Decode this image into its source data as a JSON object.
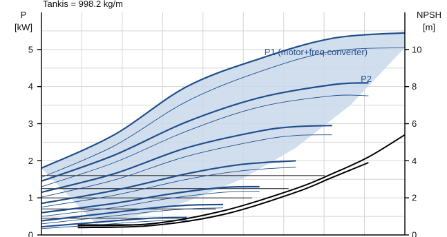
{
  "chart_data": {
    "type": "line",
    "density_label": "Tankis = 998.2 kg/m",
    "left_axis": {
      "label_line1": "P",
      "label_line2": "[kW]",
      "ylim": [
        0,
        6
      ],
      "ticks": [
        "0",
        "1",
        "2",
        "3",
        "4",
        "5"
      ]
    },
    "right_axis": {
      "label_line1": "NPSH",
      "label_line2": "[m]",
      "ylim": [
        0,
        12
      ],
      "ticks": [
        "0",
        "2",
        "4",
        "6",
        "8",
        "10"
      ]
    },
    "xlim": [
      0,
      100
    ],
    "grid": true,
    "colors": {
      "p1": "#1f4e8c",
      "p2": "#1f4e8c",
      "band": "#c9d8ea",
      "thin": "#1f4e8c",
      "npsh": "#000000"
    },
    "series": [
      {
        "name": "P1 (motor+freq.converter)",
        "role": "p1",
        "x": [
          0,
          20,
          40,
          60,
          80,
          100
        ],
        "y": [
          1.8,
          2.7,
          4.0,
          4.75,
          5.3,
          5.45
        ]
      },
      {
        "name": "P2",
        "role": "p2",
        "x": [
          0,
          20,
          40,
          60,
          80,
          100
        ],
        "y": [
          1.55,
          2.4,
          3.6,
          4.4,
          4.95,
          5.05
        ]
      },
      {
        "role": "p1",
        "x": [
          0,
          20,
          40,
          60,
          80,
          90
        ],
        "y": [
          1.45,
          2.15,
          3.05,
          3.7,
          4.05,
          4.1
        ]
      },
      {
        "role": "p2",
        "x": [
          0,
          20,
          40,
          60,
          80,
          90
        ],
        "y": [
          1.3,
          1.95,
          2.8,
          3.45,
          3.75,
          3.75
        ]
      },
      {
        "role": "p1",
        "x": [
          0,
          20,
          40,
          60,
          70,
          80
        ],
        "y": [
          1.15,
          1.65,
          2.35,
          2.8,
          2.92,
          2.95
        ]
      },
      {
        "role": "p2",
        "x": [
          0,
          20,
          40,
          60,
          70,
          80
        ],
        "y": [
          1.02,
          1.48,
          2.12,
          2.55,
          2.68,
          2.7
        ]
      },
      {
        "role": "p1",
        "x": [
          0,
          20,
          40,
          55,
          70
        ],
        "y": [
          0.85,
          1.2,
          1.65,
          1.9,
          2.0
        ]
      },
      {
        "role": "p2",
        "x": [
          0,
          20,
          40,
          55,
          70
        ],
        "y": [
          0.75,
          1.07,
          1.5,
          1.73,
          1.83
        ]
      },
      {
        "role": "p1",
        "x": [
          0,
          20,
          35,
          50,
          60
        ],
        "y": [
          0.6,
          0.85,
          1.1,
          1.28,
          1.3
        ]
      },
      {
        "role": "p2",
        "x": [
          0,
          20,
          35,
          50,
          60
        ],
        "y": [
          0.5,
          0.74,
          0.98,
          1.15,
          1.18
        ]
      },
      {
        "role": "p1",
        "x": [
          0,
          15,
          30,
          40,
          50
        ],
        "y": [
          0.38,
          0.55,
          0.72,
          0.8,
          0.82
        ]
      },
      {
        "role": "p2",
        "x": [
          0,
          15,
          30,
          40,
          50
        ],
        "y": [
          0.3,
          0.46,
          0.62,
          0.7,
          0.73
        ]
      },
      {
        "role": "p1",
        "x": [
          0,
          15,
          30,
          40
        ],
        "y": [
          0.22,
          0.34,
          0.45,
          0.47
        ]
      },
      {
        "role": "p2",
        "x": [
          0,
          15,
          30,
          40
        ],
        "y": [
          0.17,
          0.27,
          0.37,
          0.4
        ]
      }
    ],
    "band": {
      "upper_x": [
        0,
        20,
        40,
        60,
        80,
        100
      ],
      "upper_y": [
        1.8,
        2.7,
        4.0,
        4.75,
        5.3,
        5.45
      ],
      "lower_x": [
        100,
        85,
        70,
        55,
        40,
        30,
        15
      ],
      "lower_y": [
        5.05,
        3.5,
        2.35,
        1.5,
        0.9,
        0.6,
        0.3
      ]
    },
    "flat_lines": [
      {
        "x": [
          0,
          78
        ],
        "y": [
          1.6,
          1.6
        ]
      },
      {
        "x": [
          0,
          68
        ],
        "y": [
          1.25,
          1.25
        ]
      },
      {
        "x": [
          0,
          58
        ],
        "y": [
          1.0,
          1.0
        ]
      },
      {
        "x": [
          0,
          48
        ],
        "y": [
          0.7,
          0.7
        ]
      },
      {
        "x": [
          0,
          38
        ],
        "y": [
          0.45,
          0.45
        ]
      },
      {
        "x": [
          10,
          28
        ],
        "y": [
          0.28,
          0.28
        ]
      }
    ],
    "npsh": [
      {
        "x": [
          10,
          30,
          50,
          70,
          80,
          90,
          100
        ],
        "y": [
          0.5,
          0.6,
          1.3,
          2.5,
          3.3,
          4.2,
          5.4
        ]
      },
      {
        "x": [
          10,
          30,
          50,
          70,
          80,
          90
        ],
        "y": [
          0.4,
          0.5,
          1.1,
          2.3,
          3.1,
          3.9
        ]
      }
    ]
  }
}
